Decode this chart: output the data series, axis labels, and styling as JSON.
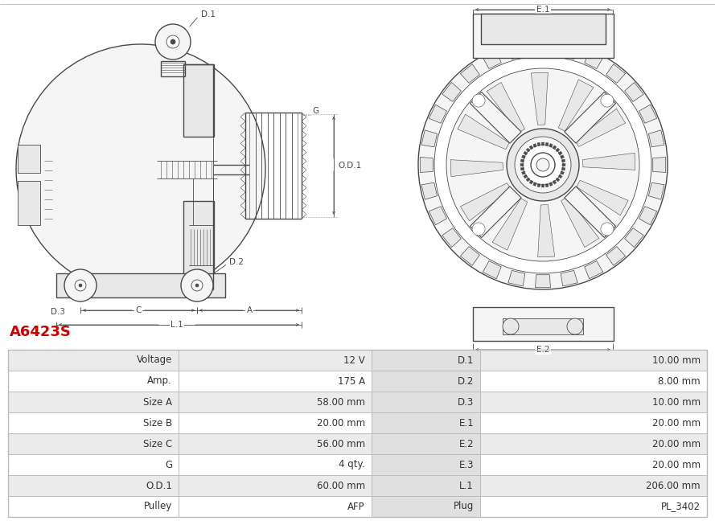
{
  "title": "A6423S",
  "title_color": "#cc0000",
  "bg_color": "#ffffff",
  "table_rows": [
    [
      "Voltage",
      "12 V",
      "D.1",
      "10.00 mm"
    ],
    [
      "Amp.",
      "175 A",
      "D.2",
      "8.00 mm"
    ],
    [
      "Size A",
      "58.00 mm",
      "D.3",
      "10.00 mm"
    ],
    [
      "Size B",
      "20.00 mm",
      "E.1",
      "20.00 mm"
    ],
    [
      "Size C",
      "56.00 mm",
      "E.2",
      "20.00 mm"
    ],
    [
      "G",
      "4 qty.",
      "E.3",
      "20.00 mm"
    ],
    [
      "O.D.1",
      "60.00 mm",
      "L.1",
      "206.00 mm"
    ],
    [
      "Pulley",
      "AFP",
      "Plug",
      "PL_3402"
    ]
  ],
  "line_color": "#4a4a4a",
  "dim_color": "#4a4a4a",
  "fill_light": "#f5f5f5",
  "fill_medium": "#e8e8e8",
  "table_border": "#bbbbbb",
  "table_bg_odd": "#ebebeb",
  "table_bg_even": "#ffffff",
  "table_col2_bg": "#e0e0e0",
  "text_color": "#333333"
}
